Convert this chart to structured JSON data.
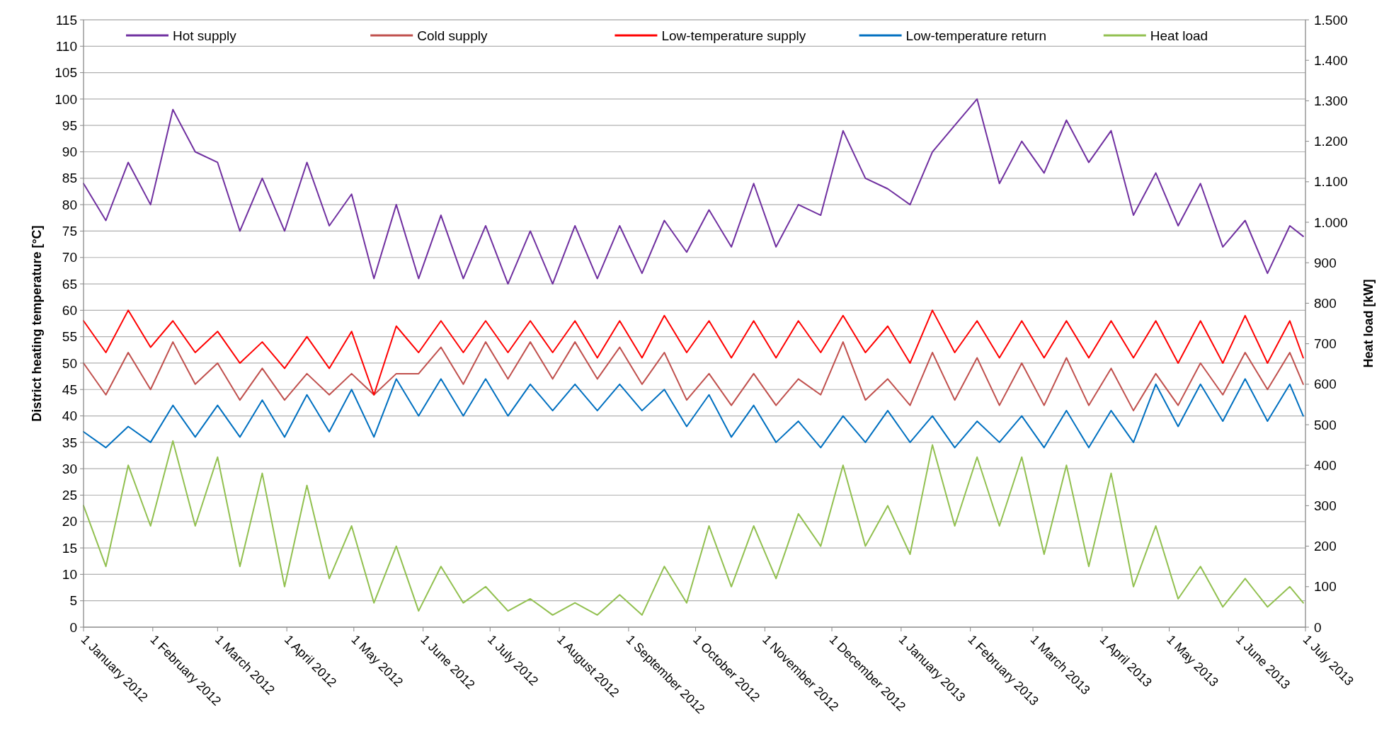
{
  "chart_data": {
    "type": "line",
    "ylabel": "District heating temperature [°C]",
    "y2label": "Heat load [kW]",
    "x": [
      "2012-01-01",
      "2012-01-11",
      "2012-01-21",
      "2012-01-31",
      "2012-02-10",
      "2012-02-20",
      "2012-03-01",
      "2012-03-11",
      "2012-03-21",
      "2012-03-31",
      "2012-04-10",
      "2012-04-20",
      "2012-04-30",
      "2012-05-10",
      "2012-05-20",
      "2012-05-30",
      "2012-06-09",
      "2012-06-19",
      "2012-06-29",
      "2012-07-09",
      "2012-07-19",
      "2012-07-29",
      "2012-08-08",
      "2012-08-18",
      "2012-08-28",
      "2012-09-07",
      "2012-09-17",
      "2012-09-27",
      "2012-10-07",
      "2012-10-17",
      "2012-10-27",
      "2012-11-06",
      "2012-11-16",
      "2012-11-26",
      "2012-12-06",
      "2012-12-16",
      "2012-12-26",
      "2013-01-05",
      "2013-01-15",
      "2013-01-25",
      "2013-02-04",
      "2013-02-14",
      "2013-02-24",
      "2013-03-06",
      "2013-03-16",
      "2013-03-26",
      "2013-04-05",
      "2013-04-15",
      "2013-04-25",
      "2013-05-05",
      "2013-05-15",
      "2013-05-25",
      "2013-06-04",
      "2013-06-14",
      "2013-06-24",
      "2013-06-30"
    ],
    "series": [
      {
        "name": "Hot supply",
        "color": "#7030a0",
        "values": [
          84,
          77,
          88,
          80,
          98,
          90,
          88,
          75,
          85,
          75,
          88,
          76,
          82,
          66,
          80,
          66,
          78,
          66,
          76,
          65,
          75,
          65,
          76,
          66,
          76,
          67,
          77,
          71,
          79,
          72,
          84,
          72,
          80,
          78,
          94,
          85,
          83,
          80,
          90,
          95,
          100,
          84,
          92,
          86,
          96,
          88,
          94,
          78,
          86,
          76,
          84,
          72,
          77,
          67,
          76,
          74
        ]
      },
      {
        "name": "Cold supply",
        "color": "#c0504d",
        "values": [
          50,
          44,
          52,
          45,
          54,
          46,
          50,
          43,
          49,
          43,
          48,
          44,
          48,
          44,
          48,
          48,
          53,
          46,
          54,
          47,
          54,
          47,
          54,
          47,
          53,
          46,
          52,
          43,
          48,
          42,
          48,
          42,
          47,
          44,
          54,
          43,
          47,
          42,
          52,
          43,
          51,
          42,
          50,
          42,
          51,
          42,
          49,
          41,
          48,
          42,
          50,
          44,
          52,
          45,
          52,
          46
        ]
      },
      {
        "name": "Low-temperature supply",
        "color": "#ff0000",
        "values": [
          58,
          52,
          60,
          53,
          58,
          52,
          56,
          50,
          54,
          49,
          55,
          49,
          56,
          44,
          57,
          52,
          58,
          52,
          58,
          52,
          58,
          52,
          58,
          51,
          58,
          51,
          59,
          52,
          58,
          51,
          58,
          51,
          58,
          52,
          59,
          52,
          57,
          50,
          60,
          52,
          58,
          51,
          58,
          51,
          58,
          51,
          58,
          51,
          58,
          50,
          58,
          50,
          59,
          50,
          58,
          51
        ]
      },
      {
        "name": "Low-temperature return",
        "color": "#0070c0",
        "values": [
          37,
          34,
          38,
          35,
          42,
          36,
          42,
          36,
          43,
          36,
          44,
          37,
          45,
          36,
          47,
          40,
          47,
          40,
          47,
          40,
          46,
          41,
          46,
          41,
          46,
          41,
          45,
          38,
          44,
          36,
          42,
          35,
          39,
          34,
          40,
          35,
          41,
          35,
          40,
          34,
          39,
          35,
          40,
          34,
          41,
          34,
          41,
          35,
          46,
          38,
          46,
          39,
          47,
          39,
          46,
          40
        ]
      },
      {
        "name": "Heat load",
        "color": "#92c050",
        "axis": "y2",
        "values": [
          300,
          150,
          400,
          250,
          460,
          250,
          420,
          150,
          380,
          100,
          350,
          120,
          250,
          60,
          200,
          40,
          150,
          60,
          100,
          40,
          70,
          30,
          60,
          30,
          80,
          30,
          150,
          60,
          250,
          100,
          250,
          120,
          280,
          200,
          400,
          200,
          300,
          180,
          450,
          250,
          420,
          250,
          420,
          180,
          400,
          150,
          380,
          100,
          250,
          70,
          150,
          50,
          120,
          50,
          100,
          60
        ]
      }
    ],
    "xlim": [
      "2012-01-01",
      "2013-07-01"
    ],
    "xticks": [
      {
        "value": "2012-01-01",
        "label": "1 January 2012"
      },
      {
        "value": "2012-02-01",
        "label": "1 February 2012"
      },
      {
        "value": "2012-03-01",
        "label": "1 March 2012"
      },
      {
        "value": "2012-04-01",
        "label": "1 April 2012"
      },
      {
        "value": "2012-05-01",
        "label": "1 May 2012"
      },
      {
        "value": "2012-06-01",
        "label": "1 June 2012"
      },
      {
        "value": "2012-07-01",
        "label": "1 July 2012"
      },
      {
        "value": "2012-08-01",
        "label": "1 August 2012"
      },
      {
        "value": "2012-09-01",
        "label": "1 September 2012"
      },
      {
        "value": "2012-10-01",
        "label": "1 October 2012"
      },
      {
        "value": "2012-11-01",
        "label": "1 November 2012"
      },
      {
        "value": "2012-12-01",
        "label": "1 December 2012"
      },
      {
        "value": "2013-01-01",
        "label": "1 January 2013"
      },
      {
        "value": "2013-02-01",
        "label": "1 February 2013"
      },
      {
        "value": "2013-03-01",
        "label": "1 March 2013"
      },
      {
        "value": "2013-04-01",
        "label": "1 April 2013"
      },
      {
        "value": "2013-05-01",
        "label": "1 May 2013"
      },
      {
        "value": "2013-06-01",
        "label": "1 June 2013"
      },
      {
        "value": "2013-07-01",
        "label": "1 July 2013"
      }
    ],
    "ylim": [
      0,
      115
    ],
    "yticks": [
      0,
      5,
      10,
      15,
      20,
      25,
      30,
      35,
      40,
      45,
      50,
      55,
      60,
      65,
      70,
      75,
      80,
      85,
      90,
      95,
      100,
      105,
      110,
      115
    ],
    "y2lim": [
      0,
      1500
    ],
    "y2ticks": [
      0,
      100,
      200,
      300,
      400,
      500,
      600,
      700,
      800,
      900,
      {
        "value": 1000,
        "label": "1.000"
      },
      {
        "value": 1100,
        "label": "1.100"
      },
      {
        "value": 1200,
        "label": "1.200"
      },
      {
        "value": 1300,
        "label": "1.300"
      },
      {
        "value": 1400,
        "label": "1.400"
      },
      {
        "value": 1500,
        "label": "1.500"
      }
    ],
    "grid": "y",
    "legend": "top",
    "marker": "none",
    "line_style": "solid"
  }
}
